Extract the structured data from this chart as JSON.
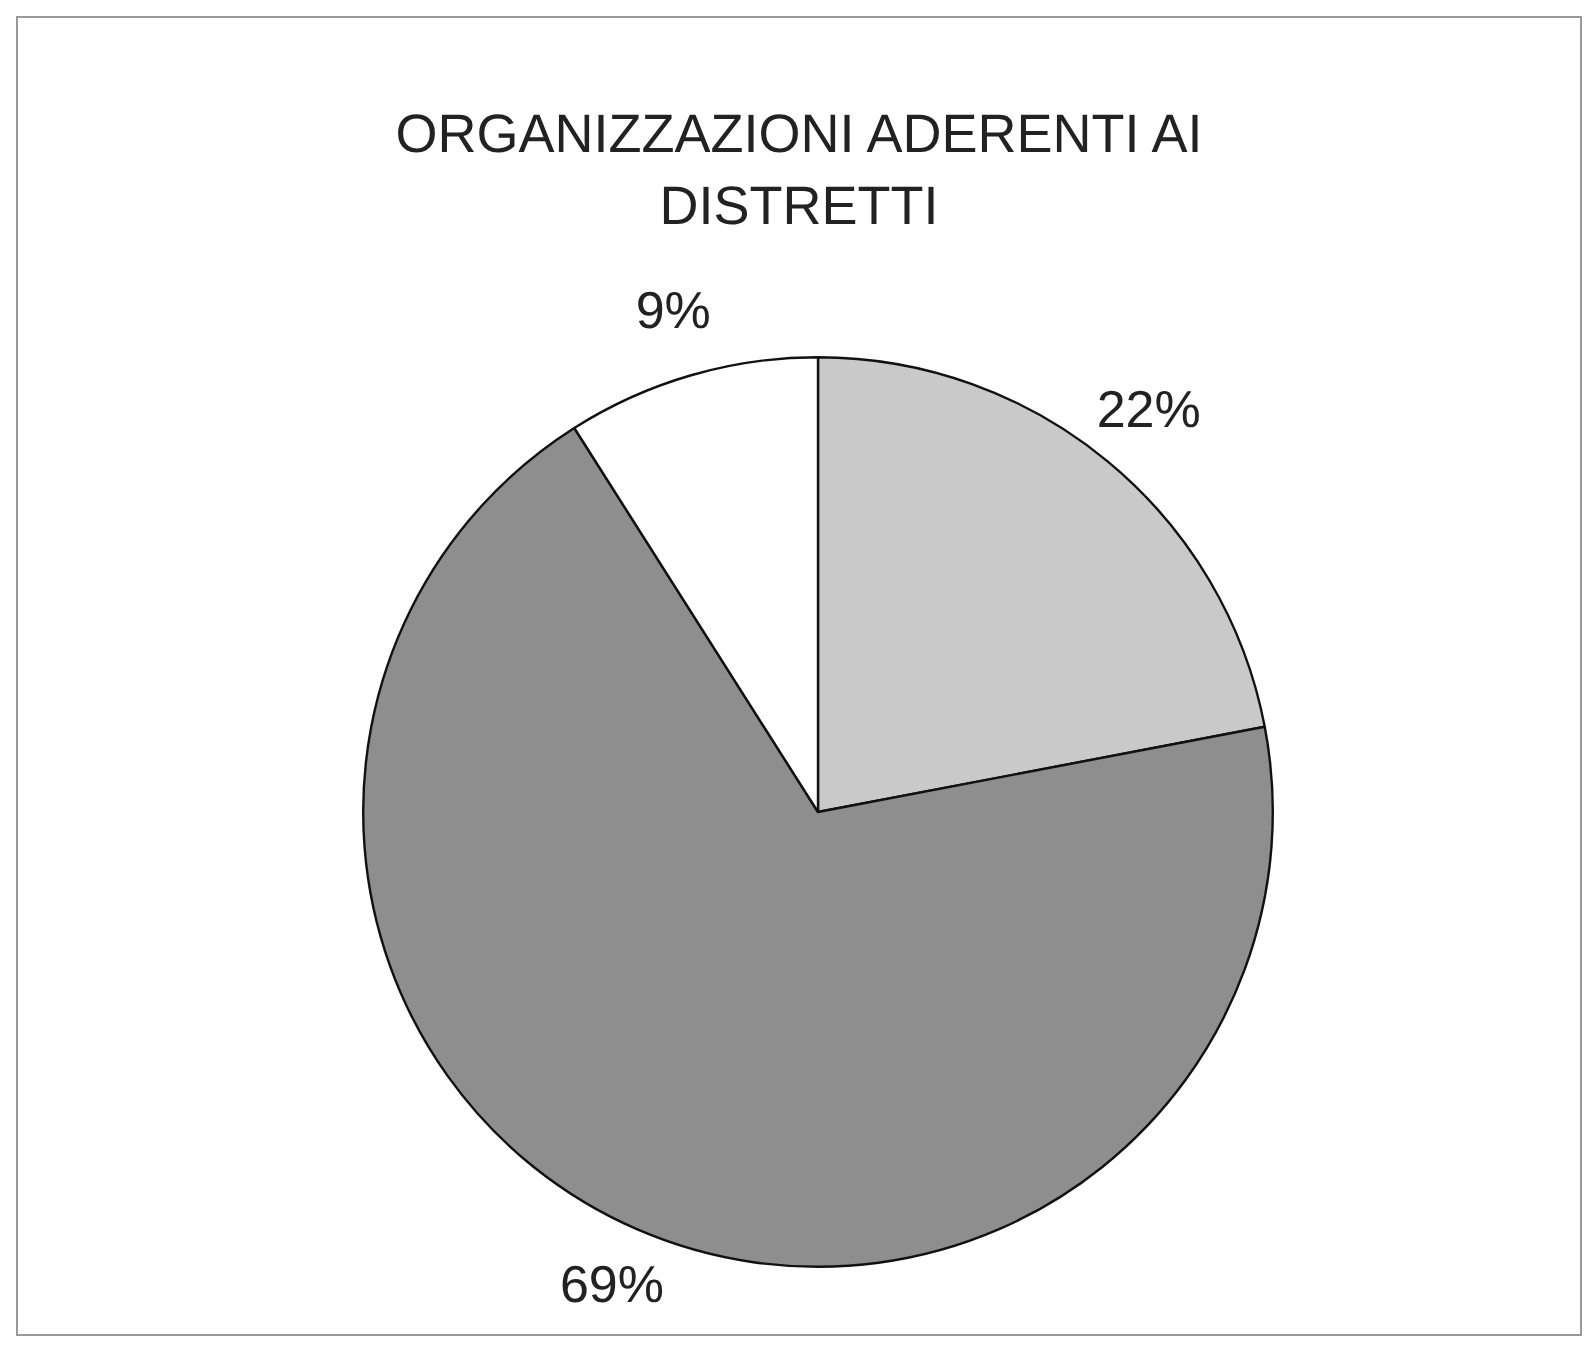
{
  "chart_data": {
    "type": "pie",
    "title": "ORGANIZZAZIONI ADERENTI AI DISTRETTI",
    "categories": [
      null,
      null,
      null
    ],
    "values": [
      22,
      69,
      9
    ],
    "colors": [
      "#c9c9c9",
      "#8e8e8e",
      "#ffffff"
    ],
    "value_labels": [
      "22%",
      "69%",
      "9%"
    ],
    "legend": false
  }
}
